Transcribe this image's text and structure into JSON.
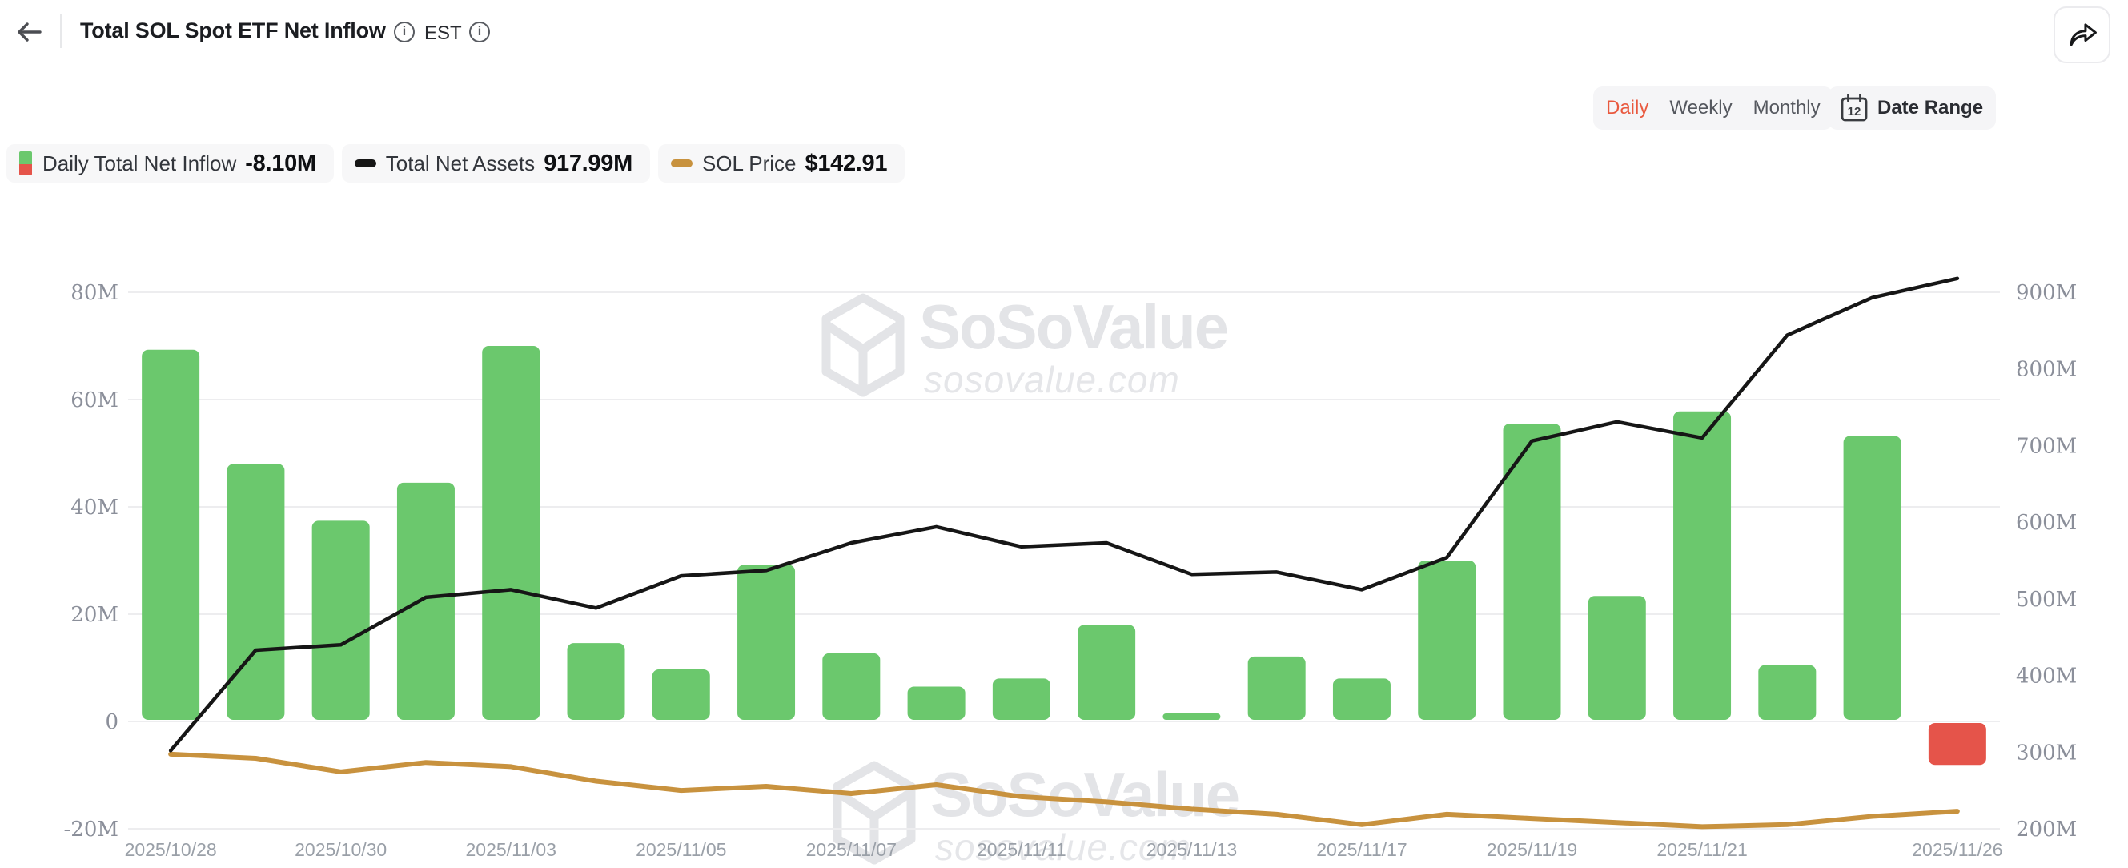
{
  "header": {
    "title": "Total SOL Spot ETF Net Inflow",
    "timezone": "EST"
  },
  "toolbar": {
    "tabs": [
      {
        "label": "Daily",
        "active": true
      },
      {
        "label": "Weekly",
        "active": false
      },
      {
        "label": "Monthly",
        "active": false
      }
    ],
    "date_range_label": "Date Range",
    "calendar_day": "12"
  },
  "legend": {
    "items": [
      {
        "label": "Daily Total Net Inflow",
        "value": "-8.10M"
      },
      {
        "label": "Total Net Assets",
        "value": "917.99M"
      },
      {
        "label": "SOL Price",
        "value": "$142.91"
      }
    ]
  },
  "watermark": {
    "brand": "SoSoValue",
    "domain": "sosovalue.com"
  },
  "colors": {
    "accent_active_tab": "#e9593f",
    "bar_positive": "#6bc86d",
    "bar_negative": "#e5544a",
    "net_assets_line": "#161616",
    "sol_price_line": "#c8923e",
    "grid_line": "#ededef",
    "axis_label": "#8b8f9a",
    "date_label": "#9aa0a8",
    "watermark": "#e3e4e7"
  },
  "chart_data": {
    "type": "mixed",
    "title": "Total SOL Spot ETF Net Inflow",
    "categories": [
      "2025/10/28",
      "2025/10/29",
      "2025/10/30",
      "2025/10/31",
      "2025/11/03",
      "2025/11/04",
      "2025/11/05",
      "2025/11/06",
      "2025/11/07",
      "2025/11/10",
      "2025/11/11",
      "2025/11/12",
      "2025/11/13",
      "2025/11/14",
      "2025/11/17",
      "2025/11/18",
      "2025/11/19",
      "2025/11/20",
      "2025/11/21",
      "2025/11/24",
      "2025/11/25",
      "2025/11/26"
    ],
    "x_tick_indices": [
      0,
      2,
      4,
      6,
      8,
      10,
      12,
      14,
      16,
      18,
      21
    ],
    "series": [
      {
        "name": "Daily Total Net Inflow",
        "type": "bar",
        "axis": "left",
        "unit": "M USD",
        "values": [
          69.3,
          48.0,
          37.4,
          44.5,
          70.0,
          14.6,
          9.7,
          29.2,
          12.7,
          6.5,
          8.0,
          18.0,
          1.5,
          12.1,
          8.0,
          30.0,
          55.5,
          23.4,
          57.8,
          10.5,
          53.2,
          -8.1
        ]
      },
      {
        "name": "Total Net Assets",
        "type": "line",
        "axis": "right",
        "unit": "M USD",
        "values": [
          302,
          433,
          440,
          502,
          512,
          488,
          530,
          537,
          573,
          594,
          568,
          573,
          532,
          535,
          512,
          554,
          706,
          731,
          710,
          844,
          893,
          917.99
        ]
      },
      {
        "name": "SOL Price",
        "type": "line",
        "axis": "price",
        "unit": "USD",
        "values": [
          198,
          194,
          181,
          190,
          186,
          172,
          163,
          167,
          160,
          168.5,
          157,
          152,
          145,
          140,
          130,
          140,
          136,
          132,
          128,
          130,
          138,
          142.91
        ]
      }
    ],
    "left_axis": {
      "tick_labels": [
        "80M",
        "60M",
        "40M",
        "20M",
        "0",
        "-20M"
      ],
      "tick_values": [
        80,
        60,
        40,
        20,
        0,
        -20
      ],
      "ylim": [
        -20,
        80
      ]
    },
    "right_axis": {
      "tick_labels": [
        "900M",
        "800M",
        "700M",
        "600M",
        "500M",
        "400M",
        "300M",
        "200M"
      ],
      "tick_values": [
        900,
        800,
        700,
        600,
        500,
        400,
        300,
        200
      ],
      "ylim": [
        200,
        900
      ]
    },
    "price_axis": {
      "hidden": true,
      "ylim": [
        126,
        644
      ]
    },
    "grid": true,
    "legend_position": "top-left"
  }
}
